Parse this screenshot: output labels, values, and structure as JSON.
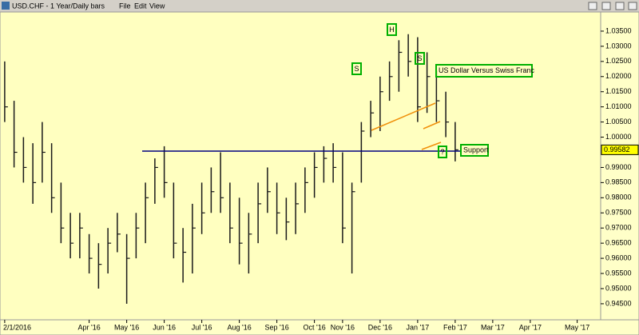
{
  "window": {
    "title": "USD.CHF - 1 Year/Daily bars",
    "menu": [
      "File",
      "Edit",
      "View"
    ]
  },
  "chart_data": {
    "type": "ohlc",
    "categories": [
      "2/1/2016",
      null,
      null,
      null,
      null,
      null,
      null,
      null,
      null,
      "Apr '16",
      null,
      null,
      null,
      "May '16",
      null,
      null,
      null,
      "Jun '16",
      null,
      null,
      null,
      "Jul '16",
      null,
      null,
      null,
      "Aug '16",
      null,
      null,
      null,
      "Sep '16",
      null,
      null,
      null,
      "Oct '16",
      null,
      null,
      "Nov '16",
      null,
      null,
      null,
      "Dec '16",
      null,
      null,
      null,
      "Jan '17",
      null,
      null,
      null,
      "Feb '17",
      null,
      null,
      null,
      "Mar '17",
      null,
      null,
      null,
      "Apr '17",
      null,
      null,
      null,
      null,
      "May '17",
      null,
      null
    ],
    "series": [
      {
        "name": "USD.CHF",
        "color": "#1a1a1a",
        "high": [
          1.025,
          1.012,
          1.0,
          0.998,
          1.005,
          0.998,
          0.985,
          0.975,
          0.975,
          0.968,
          0.965,
          0.97,
          0.975,
          0.968,
          0.975,
          0.985,
          0.993,
          0.997,
          0.985,
          0.97,
          0.978,
          0.985,
          0.99,
          0.995,
          0.985,
          0.98,
          0.975,
          0.985,
          0.99,
          0.985,
          0.98,
          0.985,
          0.99,
          0.995,
          0.997,
          0.998,
          0.995,
          0.985,
          1.005,
          1.012,
          1.02,
          1.025,
          1.032,
          1.034,
          1.033,
          1.028,
          1.022,
          1.015,
          1.005,
          null,
          null,
          null,
          null,
          null,
          null,
          null,
          null,
          null,
          null,
          null,
          null,
          null,
          null,
          null
        ],
        "low": [
          1.005,
          0.99,
          0.985,
          0.978,
          0.985,
          0.975,
          0.965,
          0.96,
          0.96,
          0.955,
          0.95,
          0.955,
          0.962,
          0.945,
          0.96,
          0.965,
          0.978,
          0.98,
          0.96,
          0.952,
          0.955,
          0.968,
          0.975,
          0.975,
          0.965,
          0.958,
          0.955,
          0.965,
          0.975,
          0.968,
          0.966,
          0.968,
          0.975,
          0.98,
          0.985,
          0.985,
          0.965,
          0.955,
          0.985,
          1.0,
          1.002,
          1.012,
          1.015,
          1.02,
          1.005,
          1.008,
          1.005,
          1.0,
          0.992,
          null,
          null,
          null,
          null,
          null,
          null,
          null,
          null,
          null,
          null,
          null,
          null,
          null,
          null,
          null
        ],
        "close": [
          1.01,
          0.995,
          0.99,
          0.985,
          0.995,
          0.98,
          0.97,
          0.965,
          0.97,
          0.96,
          0.958,
          0.965,
          0.968,
          0.96,
          0.97,
          0.98,
          0.99,
          0.985,
          0.965,
          0.962,
          0.97,
          0.975,
          0.982,
          0.98,
          0.97,
          0.965,
          0.968,
          0.978,
          0.982,
          0.975,
          0.972,
          0.978,
          0.985,
          0.99,
          0.993,
          0.99,
          0.97,
          0.982,
          1.002,
          1.008,
          1.015,
          1.02,
          1.028,
          1.025,
          1.01,
          1.02,
          1.012,
          1.005,
          0.99582,
          null,
          null,
          null,
          null,
          null,
          null,
          null,
          null,
          null,
          null,
          null,
          null,
          null,
          null,
          null
        ]
      }
    ],
    "last_price": 0.99582,
    "ylim": [
      0.9397,
      1.04
    ],
    "yticks": [
      {
        "value": 0.945,
        "label": "0.94500"
      },
      {
        "value": 0.95,
        "label": "0.95000"
      },
      {
        "value": 0.955,
        "label": "0.95500"
      },
      {
        "value": 0.96,
        "label": "0.96000"
      },
      {
        "value": 0.965,
        "label": "0.96500"
      },
      {
        "value": 0.97,
        "label": "0.97000"
      },
      {
        "value": 0.975,
        "label": "0.97500"
      },
      {
        "value": 0.98,
        "label": "0.98000"
      },
      {
        "value": 0.985,
        "label": "0.98500"
      },
      {
        "value": 0.99,
        "label": "0.99000"
      },
      {
        "value": 1.0,
        "label": "1.00000"
      },
      {
        "value": 1.005,
        "label": "1.00500"
      },
      {
        "value": 1.01,
        "label": "1.01000"
      },
      {
        "value": 1.015,
        "label": "1.01500"
      },
      {
        "value": 1.02,
        "label": "1.02000"
      },
      {
        "value": 1.025,
        "label": "1.02500"
      },
      {
        "value": 1.03,
        "label": "1.03000"
      },
      {
        "value": 1.035,
        "label": "1.03500"
      }
    ],
    "annotations": [
      "S",
      "H",
      "S",
      "US Dollar Versus Swiss Franc",
      "Support",
      "?"
    ]
  }
}
